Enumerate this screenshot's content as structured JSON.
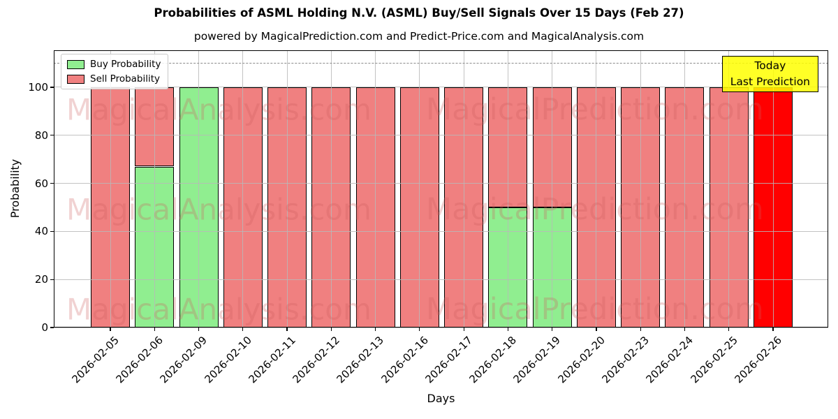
{
  "chart_data": {
    "type": "bar",
    "stacked": true,
    "title": "Probabilities of ASML Holding N.V. (ASML) Buy/Sell Signals Over 15 Days (Feb 27)",
    "subtitle": "powered by MagicalPrediction.com and Predict-Price.com and MagicalAnalysis.com",
    "xlabel": "Days",
    "ylabel": "Probability",
    "ylim": [
      0,
      115.4
    ],
    "yticks": [
      0,
      20,
      40,
      60,
      80,
      100
    ],
    "grid": true,
    "legend_position": "upper-left",
    "dashed_guide_y": 110,
    "categories": [
      "2026-02-05",
      "2026-02-06",
      "2026-02-09",
      "2026-02-10",
      "2026-02-11",
      "2026-02-12",
      "2026-02-13",
      "2026-02-16",
      "2026-02-17",
      "2026-02-18",
      "2026-02-19",
      "2026-02-20",
      "2026-02-23",
      "2026-02-24",
      "2026-02-25",
      "2026-02-26"
    ],
    "series": [
      {
        "name": "Buy Probability",
        "color": "#90ee90",
        "values": [
          0,
          67,
          100,
          0,
          0,
          0,
          0,
          0,
          0,
          50,
          50,
          0,
          0,
          0,
          0,
          0
        ]
      },
      {
        "name": "Sell Probability",
        "color": "#f08080",
        "values": [
          100,
          33,
          0,
          100,
          100,
          100,
          100,
          100,
          100,
          50,
          50,
          100,
          100,
          100,
          100,
          100
        ]
      }
    ],
    "highlight_bar": {
      "category": "2026-02-26",
      "color": "#ff0000",
      "value": 100
    },
    "annotation": {
      "line1": "Today",
      "line2": "Last Prediction",
      "bg_color": "#ffff00"
    },
    "watermarks": {
      "left": "MagicalAnalysis.com",
      "right": "MagicalPrediction.com"
    },
    "colors": {
      "bar_edge": "#000000",
      "grid": "#b9b9b9",
      "dashed_guide": "#8a8a8a",
      "watermark": "rgba(205,92,92,0.28)",
      "spine": "#000000"
    }
  }
}
